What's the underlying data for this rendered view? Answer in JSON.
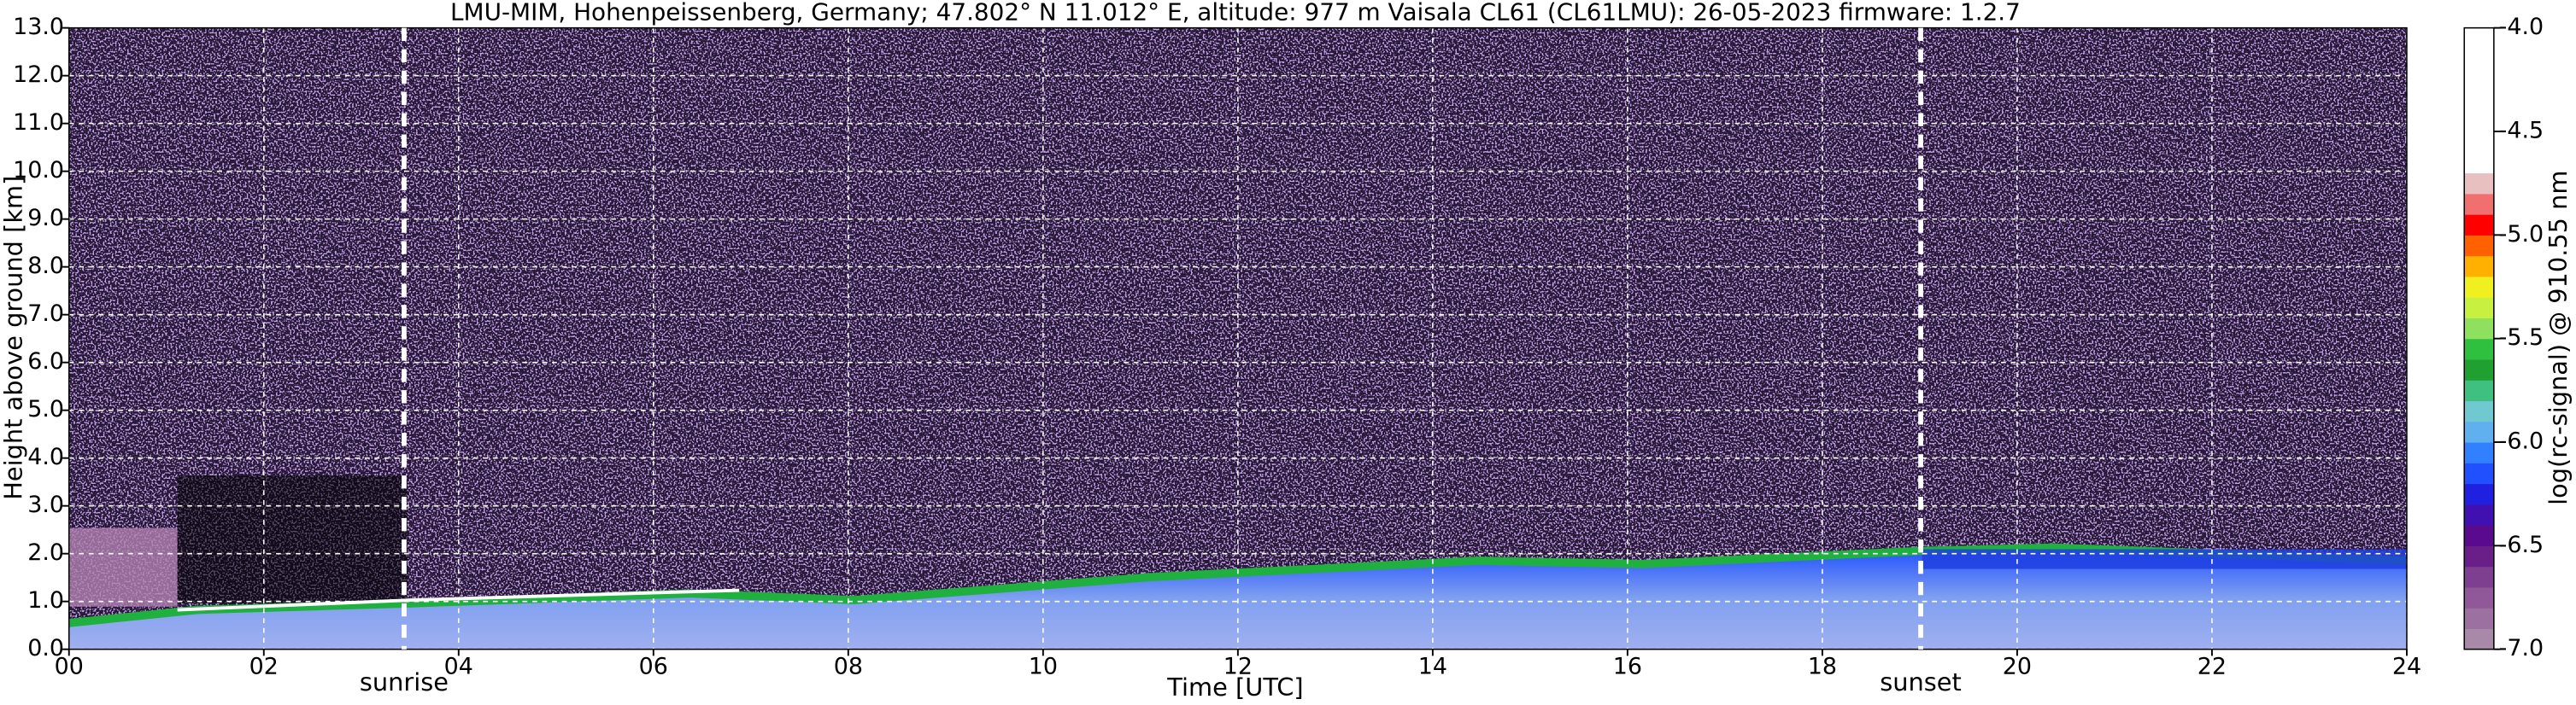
{
  "chart_data": {
    "type": "heatmap",
    "title": "LMU-MIM, Hohenpeissenberg, Germany; 47.802° N 11.012° E, altitude: 977 m    Vaisala CL61 (CL61LMU): 26-05-2023    firmware: 1.2.7",
    "x_label": "Time [UTC]",
    "y_label": "Height above ground [km]",
    "colorbar_label": "log(rc-signal) @ 910.55 nm",
    "xlim": [
      0,
      24
    ],
    "xticks": [
      {
        "value": 0,
        "label": "00"
      },
      {
        "value": 2,
        "label": "02"
      },
      {
        "value": 4,
        "label": "04"
      },
      {
        "value": 6,
        "label": "06"
      },
      {
        "value": 8,
        "label": "08"
      },
      10,
      12,
      14,
      16,
      18,
      20,
      22,
      24
    ],
    "ylim": [
      0,
      13
    ],
    "yticks": [
      {
        "value": 0,
        "label": "0.0"
      },
      {
        "value": 1,
        "label": "1.0"
      },
      {
        "value": 2,
        "label": "2.0"
      },
      {
        "value": 3,
        "label": "3.0"
      },
      {
        "value": 4,
        "label": "4.0"
      },
      {
        "value": 5,
        "label": "5.0"
      },
      {
        "value": 6,
        "label": "6.0"
      },
      {
        "value": 7,
        "label": "7.0"
      },
      {
        "value": 8,
        "label": "8.0"
      },
      {
        "value": 9,
        "label": "9.0"
      },
      {
        "value": 10,
        "label": "10.0"
      },
      {
        "value": 11,
        "label": "11.0"
      },
      {
        "value": 12,
        "label": "12.0"
      },
      {
        "value": 13,
        "label": "13.0"
      }
    ],
    "clim": [
      -7,
      -4
    ],
    "cticks": [
      {
        "value": -4,
        "label": "-4.0"
      },
      {
        "value": -4.5,
        "label": "-4.5"
      },
      {
        "value": -5,
        "label": "-5.0"
      },
      {
        "value": -5.5,
        "label": "-5.5"
      },
      {
        "value": -6,
        "label": "-6.0"
      },
      {
        "value": -6.5,
        "label": "-6.5"
      },
      {
        "value": -7,
        "label": "-7.0"
      }
    ],
    "colorbar_colors": [
      "#a88aa8",
      "#9c70a0",
      "#905898",
      "#7e3f90",
      "#6a1f88",
      "#5a0a8c",
      "#4010b0",
      "#2020e0",
      "#2050ff",
      "#3080ff",
      "#60b0f0",
      "#70c8d0",
      "#40c080",
      "#20a030",
      "#30c040",
      "#90e060",
      "#c8f040",
      "#f0f020",
      "#ffb000",
      "#ff6000",
      "#ff0000",
      "#f07070",
      "#e8c0c0",
      "#ffffff",
      "#ffffff",
      "#ffffff",
      "#ffffff",
      "#ffffff",
      "#ffffff",
      "#ffffff"
    ],
    "grid": true,
    "annotations": [
      {
        "text": "sunrise",
        "x": 3.44
      },
      {
        "text": "sunset",
        "x": 19.01
      }
    ]
  }
}
